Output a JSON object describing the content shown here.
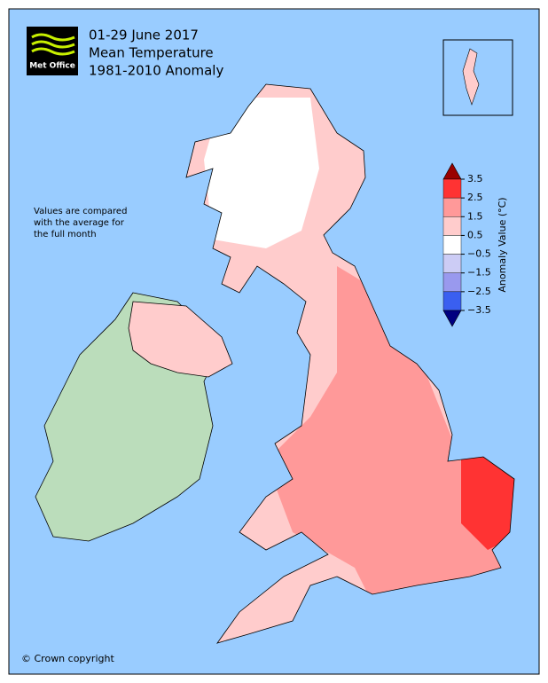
{
  "header": {
    "logo": "Met Office",
    "title_lines": [
      "01-29 June 2017",
      "Mean Temperature",
      "1981-2010 Anomaly"
    ]
  },
  "note_lines": [
    "Values are compared",
    "with the average for",
    "the full month"
  ],
  "legend": {
    "title": "Anomaly Value (°C)",
    "ticks": [
      3.5,
      2.5,
      1.5,
      0.5,
      {
        "value": -0.5,
        "label": "−0.5"
      },
      {
        "value": -1.5,
        "label": "−1.5"
      },
      {
        "value": -2.5,
        "label": "−2.5"
      },
      {
        "value": -3.5,
        "label": "−3.5"
      }
    ],
    "colors": [
      "#990000",
      "#ff3333",
      "#ff9999",
      "#ffcccc",
      "#ffffff",
      "#ccccf5",
      "#9999ee",
      "#3a5ff0",
      "#000080"
    ]
  },
  "copyright": "© Crown copyright"
}
